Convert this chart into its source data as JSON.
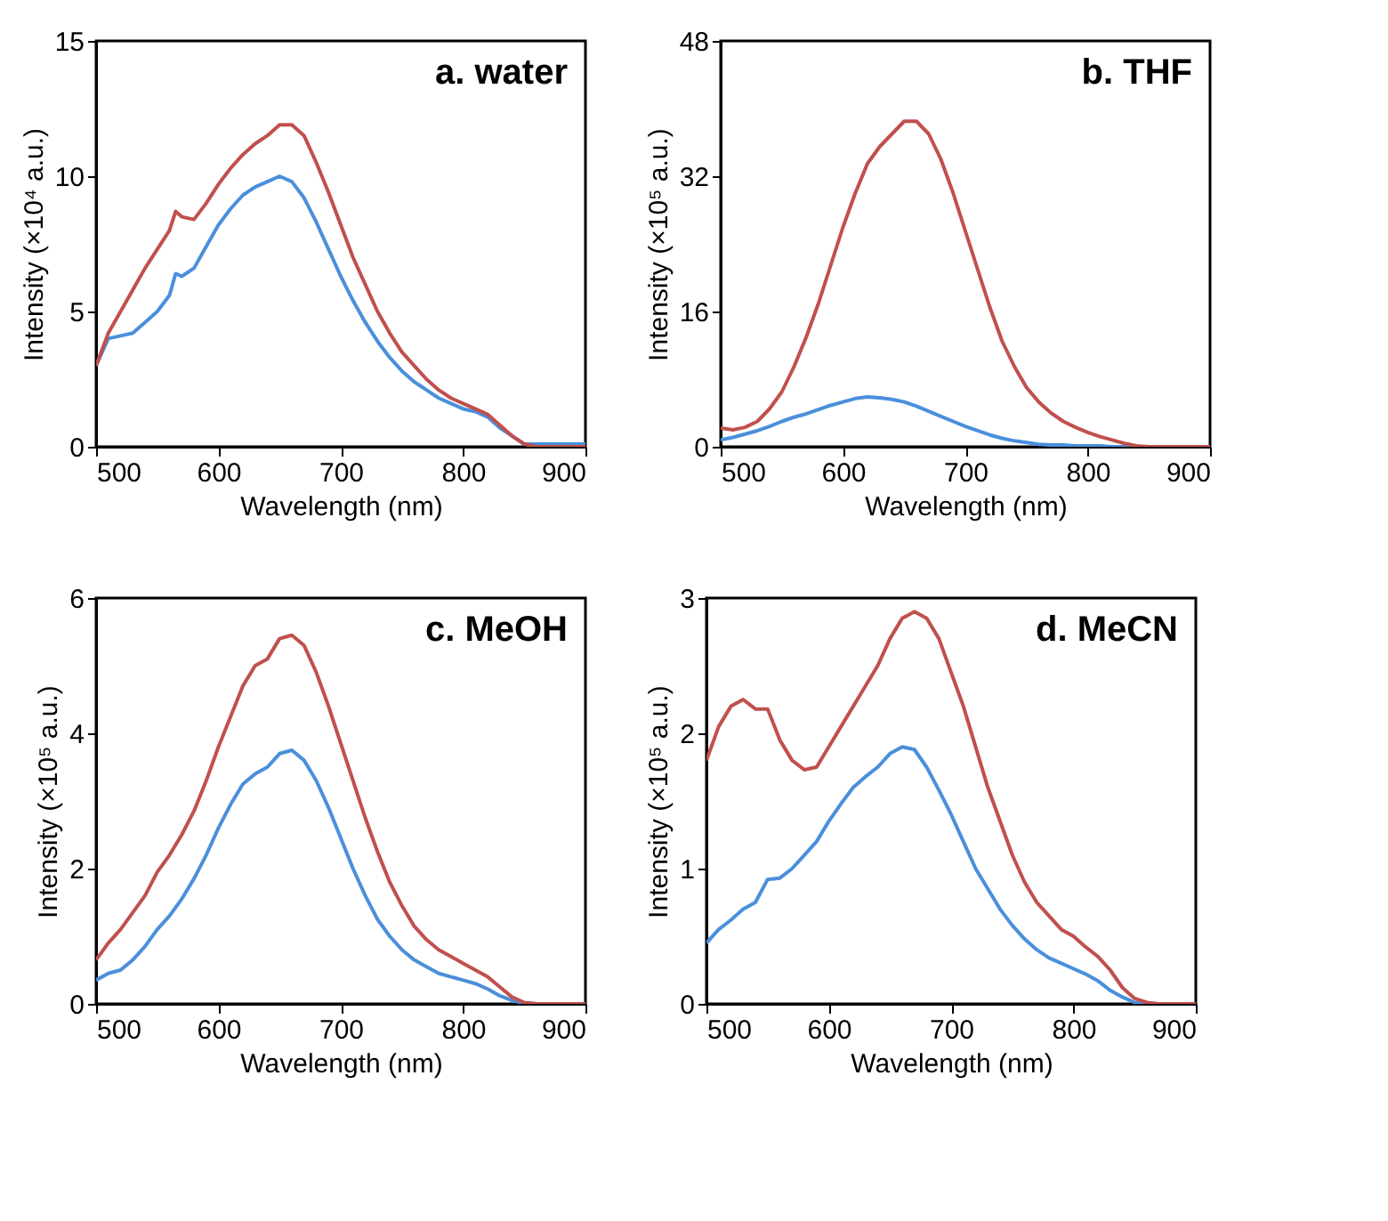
{
  "chart_data": [
    {
      "type": "line",
      "annotations": [
        "a. water"
      ],
      "xlabel": "Wavelength (nm)",
      "ylabel": "Intensity (×10⁴ a.u.)",
      "xlim": [
        500,
        900
      ],
      "xticks": [
        500,
        600,
        700,
        800,
        900
      ],
      "ylim": [
        0,
        15
      ],
      "yticks": [
        0,
        5,
        10,
        15
      ],
      "x": [
        500,
        510,
        520,
        530,
        540,
        550,
        560,
        565,
        570,
        580,
        590,
        600,
        610,
        620,
        630,
        640,
        650,
        660,
        670,
        680,
        690,
        700,
        710,
        720,
        730,
        740,
        750,
        760,
        770,
        780,
        790,
        800,
        810,
        820,
        830,
        840,
        850,
        860,
        870,
        880,
        890,
        900
      ],
      "series": [
        {
          "color": "#c0504d",
          "values": [
            3.0,
            4.2,
            5.0,
            5.8,
            6.6,
            7.3,
            8.0,
            8.7,
            8.5,
            8.4,
            9.0,
            9.7,
            10.3,
            10.8,
            11.2,
            11.5,
            11.9,
            11.9,
            11.5,
            10.5,
            9.4,
            8.2,
            7.0,
            6.0,
            5.0,
            4.2,
            3.5,
            3.0,
            2.5,
            2.1,
            1.8,
            1.6,
            1.4,
            1.2,
            0.8,
            0.4,
            0.1,
            0,
            0,
            0,
            0,
            0
          ]
        },
        {
          "color": "#4a8fdc",
          "values": [
            3.0,
            4.0,
            4.1,
            4.2,
            4.6,
            5.0,
            5.6,
            6.4,
            6.3,
            6.6,
            7.4,
            8.2,
            8.8,
            9.3,
            9.6,
            9.8,
            10.0,
            9.8,
            9.2,
            8.3,
            7.3,
            6.3,
            5.4,
            4.6,
            3.9,
            3.3,
            2.8,
            2.4,
            2.1,
            1.8,
            1.6,
            1.4,
            1.3,
            1.1,
            0.7,
            0.4,
            0.1,
            0.1,
            0.1,
            0.1,
            0.1,
            0.1
          ]
        }
      ]
    },
    {
      "type": "line",
      "annotations": [
        "b. THF"
      ],
      "xlabel": "Wavelength (nm)",
      "ylabel": "Intensity (×10⁵ a.u.)",
      "xlim": [
        500,
        900
      ],
      "xticks": [
        500,
        600,
        700,
        800,
        900
      ],
      "ylim": [
        0,
        48
      ],
      "yticks": [
        0,
        16,
        32,
        48
      ],
      "x": [
        500,
        510,
        520,
        530,
        540,
        550,
        560,
        570,
        580,
        590,
        600,
        610,
        620,
        630,
        640,
        650,
        660,
        670,
        680,
        690,
        700,
        710,
        720,
        730,
        740,
        750,
        760,
        770,
        780,
        790,
        800,
        810,
        820,
        830,
        840,
        850,
        860,
        870,
        880,
        890,
        900
      ],
      "series": [
        {
          "color": "#c0504d",
          "values": [
            2.2,
            2.0,
            2.3,
            3.0,
            4.5,
            6.5,
            9.5,
            13,
            17,
            21.5,
            26,
            30,
            33.5,
            35.5,
            37,
            38.5,
            38.5,
            37,
            34,
            30,
            25.5,
            21,
            16.5,
            12.5,
            9.5,
            7,
            5.3,
            4.0,
            3.0,
            2.3,
            1.7,
            1.2,
            0.8,
            0.4,
            0.1,
            0,
            0,
            0,
            0,
            0,
            0
          ]
        },
        {
          "color": "#4a8fdc",
          "values": [
            0.8,
            1.1,
            1.5,
            1.9,
            2.4,
            3.0,
            3.5,
            3.9,
            4.4,
            4.9,
            5.3,
            5.7,
            5.9,
            5.8,
            5.6,
            5.3,
            4.8,
            4.2,
            3.6,
            3.0,
            2.4,
            1.9,
            1.4,
            1.0,
            0.7,
            0.5,
            0.3,
            0.2,
            0.2,
            0.1,
            0.1,
            0.1,
            0,
            0,
            0,
            null,
            null,
            null,
            null,
            null,
            null
          ]
        }
      ]
    },
    {
      "type": "line",
      "annotations": [
        "c. MeOH"
      ],
      "xlabel": "Wavelength (nm)",
      "ylabel": "Intensity (×10⁵ a.u.)",
      "xlim": [
        500,
        900
      ],
      "xticks": [
        500,
        600,
        700,
        800,
        900
      ],
      "ylim": [
        0,
        6
      ],
      "yticks": [
        0,
        2,
        4,
        6
      ],
      "x": [
        500,
        510,
        520,
        530,
        540,
        550,
        560,
        570,
        580,
        590,
        600,
        610,
        620,
        630,
        640,
        650,
        660,
        670,
        680,
        690,
        700,
        710,
        720,
        730,
        740,
        750,
        760,
        770,
        780,
        790,
        800,
        810,
        820,
        830,
        840,
        850,
        860,
        870,
        880,
        890,
        900
      ],
      "series": [
        {
          "color": "#c0504d",
          "values": [
            0.65,
            0.9,
            1.1,
            1.35,
            1.6,
            1.95,
            2.2,
            2.5,
            2.85,
            3.3,
            3.8,
            4.25,
            4.7,
            5.0,
            5.1,
            5.4,
            5.45,
            5.3,
            4.9,
            4.4,
            3.85,
            3.3,
            2.75,
            2.25,
            1.8,
            1.45,
            1.15,
            0.95,
            0.8,
            0.7,
            0.6,
            0.5,
            0.4,
            0.25,
            0.1,
            0.02,
            0,
            0,
            0,
            0,
            0
          ]
        },
        {
          "color": "#4a8fdc",
          "values": [
            0.35,
            0.45,
            0.5,
            0.65,
            0.85,
            1.1,
            1.3,
            1.55,
            1.85,
            2.2,
            2.6,
            2.95,
            3.25,
            3.4,
            3.5,
            3.7,
            3.75,
            3.6,
            3.3,
            2.9,
            2.45,
            2.0,
            1.6,
            1.25,
            1.0,
            0.8,
            0.65,
            0.55,
            0.45,
            0.4,
            0.35,
            0.3,
            0.22,
            0.12,
            0.05,
            0.01,
            0,
            null,
            null,
            null,
            null
          ]
        }
      ]
    },
    {
      "type": "line",
      "annotations": [
        "d. MeCN"
      ],
      "xlabel": "Wavelength (nm)",
      "ylabel": "Intensity (×10⁵ a.u.)",
      "xlim": [
        500,
        900
      ],
      "xticks": [
        500,
        600,
        700,
        800,
        900
      ],
      "ylim": [
        0,
        3
      ],
      "yticks": [
        0,
        1,
        2,
        3
      ],
      "x": [
        500,
        510,
        520,
        530,
        540,
        550,
        560,
        570,
        580,
        590,
        600,
        610,
        620,
        630,
        640,
        650,
        660,
        670,
        680,
        690,
        700,
        710,
        720,
        730,
        740,
        750,
        760,
        770,
        780,
        790,
        800,
        810,
        820,
        830,
        840,
        850,
        860,
        870,
        880,
        890,
        900
      ],
      "series": [
        {
          "color": "#c0504d",
          "values": [
            1.8,
            2.05,
            2.2,
            2.25,
            2.18,
            2.18,
            1.95,
            1.8,
            1.73,
            1.75,
            1.9,
            2.05,
            2.2,
            2.35,
            2.5,
            2.7,
            2.85,
            2.9,
            2.85,
            2.7,
            2.45,
            2.2,
            1.9,
            1.6,
            1.35,
            1.1,
            0.9,
            0.75,
            0.65,
            0.55,
            0.5,
            0.42,
            0.35,
            0.25,
            0.12,
            0.04,
            0.01,
            0,
            0,
            0,
            0
          ]
        },
        {
          "color": "#4a8fdc",
          "values": [
            0.45,
            0.55,
            0.62,
            0.7,
            0.75,
            0.92,
            0.93,
            1.0,
            1.1,
            1.2,
            1.35,
            1.48,
            1.6,
            1.68,
            1.75,
            1.85,
            1.9,
            1.88,
            1.75,
            1.58,
            1.4,
            1.2,
            1.0,
            0.85,
            0.7,
            0.58,
            0.48,
            0.4,
            0.34,
            0.3,
            0.26,
            0.22,
            0.17,
            0.1,
            0.05,
            0.01,
            0,
            0,
            null,
            null,
            null
          ]
        }
      ]
    }
  ]
}
